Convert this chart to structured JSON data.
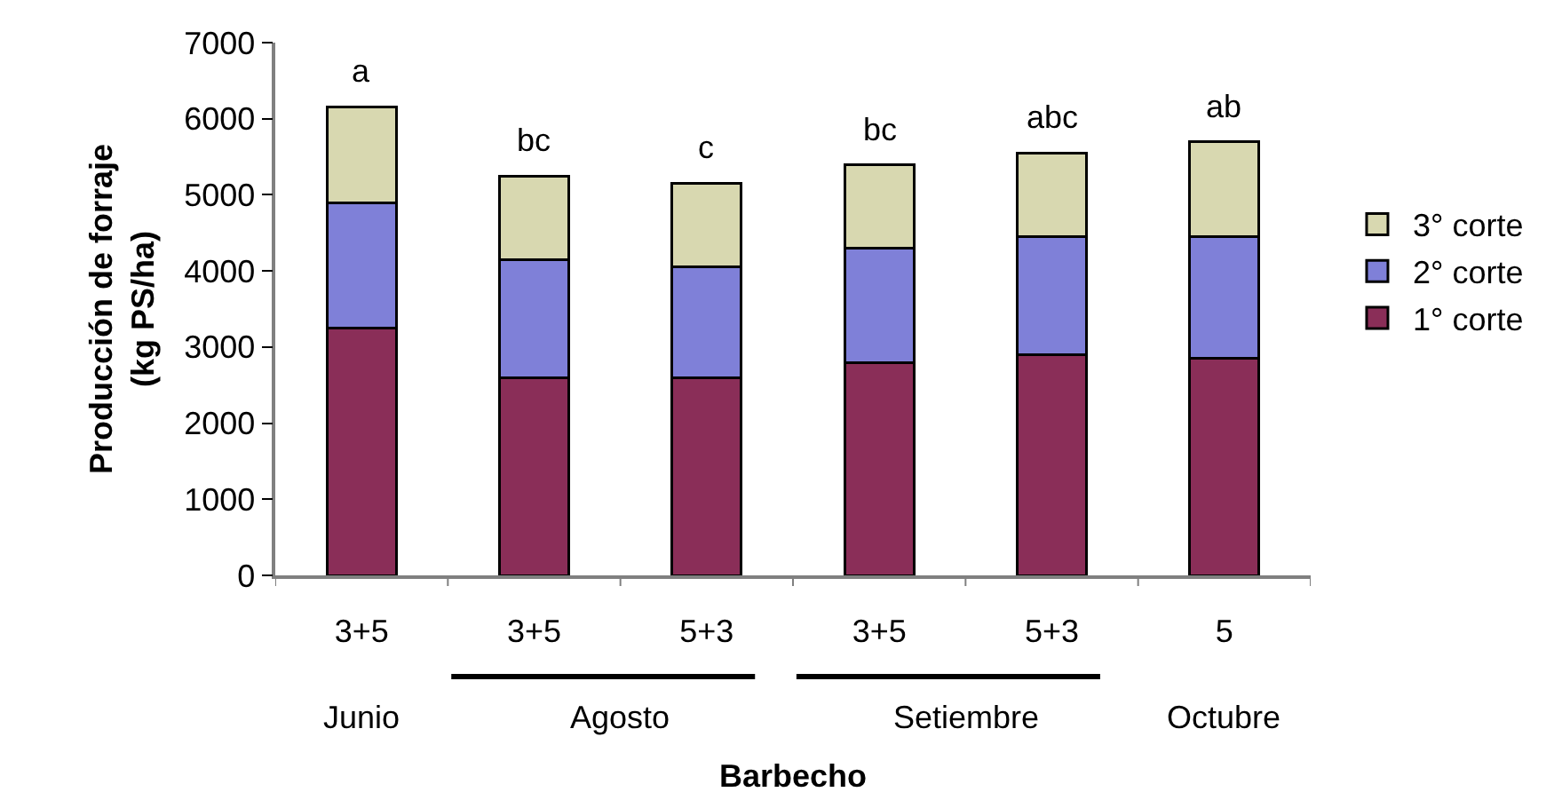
{
  "chart_data": {
    "type": "bar",
    "stacked": true,
    "xlabel": "Barbecho",
    "ylabel": "Producción de forraje\n(kg PS/ha)",
    "categories": [
      "3+5",
      "3+5",
      "5+3",
      "3+5",
      "5+3",
      "5"
    ],
    "series": [
      {
        "name": "1° corte",
        "color": "#8a2e58",
        "values": [
          3250,
          2600,
          2600,
          2800,
          2900,
          2850
        ]
      },
      {
        "name": "2° corte",
        "color": "#7f80d8",
        "values": [
          1650,
          1550,
          1450,
          1500,
          1550,
          1600
        ]
      },
      {
        "name": "3° corte",
        "color": "#d8d8b0",
        "values": [
          1250,
          1100,
          1100,
          1100,
          1100,
          1250
        ]
      }
    ],
    "ylim": [
      0,
      7000
    ],
    "yticks": [
      0,
      1000,
      2000,
      3000,
      4000,
      5000,
      6000,
      7000
    ],
    "legend": "right",
    "grid": false,
    "annotations": [
      "a",
      "bc",
      "c",
      "bc",
      "abc",
      "ab",
      "Junio",
      "Agosto",
      "Setiembre",
      "Octubre"
    ]
  }
}
